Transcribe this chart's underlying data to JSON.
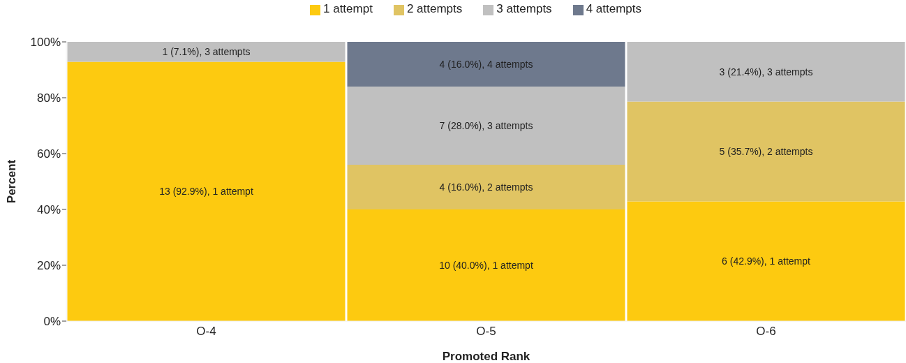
{
  "chart_data": {
    "type": "bar",
    "stacked": true,
    "xlabel": "Promoted Rank",
    "ylabel": "Percent",
    "legend": "top",
    "categories": [
      "O-4",
      "O-5",
      "O-6"
    ],
    "ylim": [
      0,
      100
    ],
    "yticks": [
      {
        "value": 0,
        "label": "0%"
      },
      {
        "value": 20,
        "label": "20%"
      },
      {
        "value": 40,
        "label": "40%"
      },
      {
        "value": 60,
        "label": "60%"
      },
      {
        "value": 80,
        "label": "80%"
      },
      {
        "value": 100,
        "label": "100%"
      }
    ],
    "series": [
      {
        "name": "1 attempt",
        "color": "#fdca10",
        "values": [
          92.9,
          40.0,
          42.9
        ],
        "value_labels": [
          "13 (92.9%), 1 attempt",
          "10 (40.0%), 1 attempt",
          "6 (42.9%), 1 attempt"
        ]
      },
      {
        "name": "2 attempts",
        "color": "#e0c463",
        "values": [
          null,
          16.0,
          35.7
        ],
        "value_labels": [
          null,
          "4 (16.0%), 2 attempts",
          "5 (35.7%), 2 attempts"
        ]
      },
      {
        "name": "3 attempts",
        "color": "#c0c0c0",
        "values": [
          7.1,
          28.0,
          21.4
        ],
        "value_labels": [
          "1 (7.1%), 3 attempts",
          "7 (28.0%), 3 attempts",
          "3 (21.4%), 3 attempts"
        ]
      },
      {
        "name": "4 attempts",
        "color": "#6e798d",
        "values": [
          null,
          16.0,
          null
        ],
        "value_labels": [
          null,
          "4 (16.0%), 4 attempts",
          null
        ]
      }
    ]
  }
}
